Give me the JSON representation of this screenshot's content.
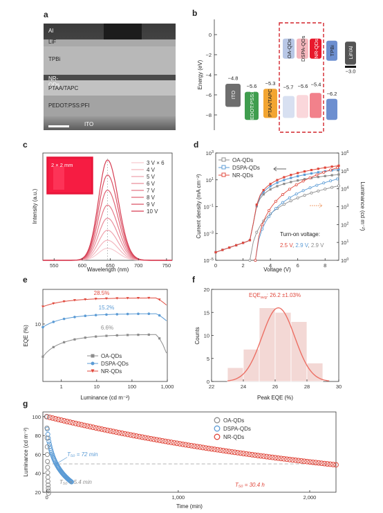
{
  "panels": {
    "a": "a",
    "b": "b",
    "c": "c",
    "d": "d",
    "e": "e",
    "f": "f",
    "g": "g"
  },
  "panel_a": {
    "layers": [
      "Al",
      "LiF",
      "TPBi",
      "NR-QDs",
      "PTAA/TAPC",
      "PEDOT:PSS:PFI",
      "ITO"
    ]
  },
  "colors": {
    "oa": "#8c8c8c",
    "dspa": "#5b9bd5",
    "nr": "#e0483c",
    "ito": "#6e6e6e",
    "pedot": "#3f9d4e",
    "ptaa": "#f3a531",
    "oa_bar": "#b8c7e6",
    "dspa_bar": "#f5b7bd",
    "nr_bar": "#e8192c",
    "tpbi": "#6d8fd0",
    "lif": "#555555",
    "hist": "#f3d8d5",
    "gauss": "#ec6f64"
  },
  "chart_data": [
    {
      "panel": "b",
      "type": "diagram",
      "ylabel": "Energy (eV)",
      "ylim": [
        -9,
        1
      ],
      "yticks": [
        "0",
        "−2",
        "−4",
        "−6",
        "−8"
      ],
      "materials": [
        {
          "name": "ITO",
          "value_label": "−4.8",
          "work_function": -4.8
        },
        {
          "name": "PEDOT:PSS:PFI",
          "value_label": "−5.6",
          "homo": -5.6
        },
        {
          "name": "PTAA/TAPC",
          "value_label": "−5.3",
          "homo": -5.3
        },
        {
          "name": "OA-QDs",
          "value_label": "−5.7",
          "homo": -5.7
        },
        {
          "name": "DSPA-QDs",
          "value_label": "−5.6",
          "homo": -5.6
        },
        {
          "name": "NR-QDs",
          "value_label": "−5.4",
          "homo": -5.4
        },
        {
          "name": "TPBi",
          "value_label": "−6.2",
          "homo": -6.2
        },
        {
          "name": "LiF/Al",
          "value_label": "−3.0",
          "work_function": -3.0
        }
      ]
    },
    {
      "panel": "c",
      "type": "line",
      "xlabel": "Wavelength (nm)",
      "ylabel": "Intensity (a.u.)",
      "xlim": [
        530,
        760
      ],
      "xticks": [
        550,
        600,
        650,
        700,
        750
      ],
      "peak_nm": 645,
      "series": [
        {
          "name": "3 V × 6",
          "peak": 0.12
        },
        {
          "name": "4 V",
          "peak": 0.2
        },
        {
          "name": "5 V",
          "peak": 0.3
        },
        {
          "name": "6 V",
          "peak": 0.42
        },
        {
          "name": "7 V",
          "peak": 0.55
        },
        {
          "name": "8 V",
          "peak": 0.7
        },
        {
          "name": "9 V",
          "peak": 0.85
        },
        {
          "name": "10 V",
          "peak": 1.0
        }
      ],
      "inset_label": "2 × 2 mm"
    },
    {
      "panel": "d",
      "type": "line",
      "xlabel": "Voltage (V)",
      "ylabel": "Current density (mA cm⁻²)",
      "y2label": "Luminance (cd m⁻²)",
      "xlim": [
        0,
        9
      ],
      "xticks": [
        0,
        2,
        4,
        6,
        8
      ],
      "y_exp": [
        -5,
        3
      ],
      "y2_exp": [
        0,
        6
      ],
      "series": [
        "OA-QDs",
        "DSPA-QDs",
        "NR-QDs"
      ],
      "annotation_title": "Turn-on voltage:",
      "turn_on": [
        "2.5 V",
        "2.9 V",
        "2.9 V"
      ],
      "turn_on_v": [
        2.5,
        2.9,
        2.9
      ]
    },
    {
      "panel": "e",
      "type": "line",
      "xlabel": "Luminance (cd m⁻²)",
      "ylabel": "EQE (%)",
      "xlim": [
        0.3,
        1000
      ],
      "xticks": [
        "1",
        "10",
        "100",
        "1,000"
      ],
      "ytick": "10",
      "series": [
        {
          "name": "OA-QDs",
          "peak_label": "6.6%",
          "peak": 6.6
        },
        {
          "name": "DSPA-QDs",
          "peak_label": "15.2%",
          "peak": 15.2
        },
        {
          "name": "NR-QDs",
          "peak_label": "28.5%",
          "peak": 28.5
        }
      ]
    },
    {
      "panel": "f",
      "type": "bar",
      "xlabel": "Peak EQE (%)",
      "ylabel": "Counts",
      "xlim": [
        22,
        30
      ],
      "ylim": [
        0,
        20
      ],
      "xticks": [
        22,
        24,
        26,
        28,
        30
      ],
      "yticks": [
        0,
        5,
        10,
        15,
        20
      ],
      "bins": [
        [
          23,
          24
        ],
        [
          24,
          25
        ],
        [
          25,
          26
        ],
        [
          26,
          27
        ],
        [
          27,
          28
        ],
        [
          28,
          29
        ]
      ],
      "counts": [
        3,
        7,
        16,
        15,
        13,
        4
      ],
      "annotation": "EQE",
      "annotation_sub": "avg",
      "annotation_value": ": 26.2 ±1.03%",
      "mean": 26.2,
      "std": 1.03
    },
    {
      "panel": "g",
      "type": "scatter",
      "xlabel": "Time (min)",
      "ylabel": "Luminance (cd m⁻²)",
      "xlim": [
        -30,
        2200
      ],
      "ylim": [
        20,
        105
      ],
      "xticks": [
        "0",
        "1,000",
        "2,000"
      ],
      "yticks": [
        20,
        40,
        60,
        80,
        100
      ],
      "series": [
        "OA-QDs",
        "DSPA-QDs",
        "NR-QDs"
      ],
      "t50_labels": [
        "T₅₀ = 5.4 min",
        "T₅₀ = 72 min",
        "T₅₀ = 30.4 h"
      ],
      "t50_minutes": [
        5.4,
        72,
        1824
      ],
      "reference_level": 50
    }
  ]
}
